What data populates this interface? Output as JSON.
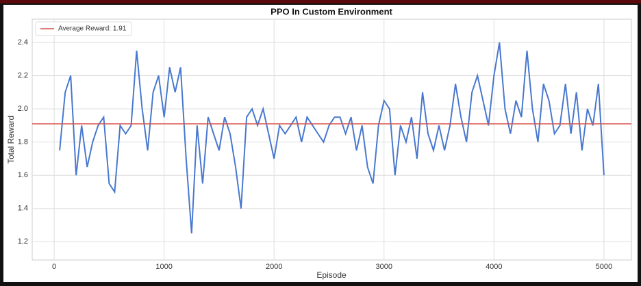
{
  "chart_data": {
    "type": "line",
    "title": "PPO In Custom Environment",
    "xlabel": "Episode",
    "ylabel": "Total Reward",
    "x": [
      50,
      100,
      150,
      200,
      250,
      300,
      350,
      400,
      450,
      500,
      550,
      600,
      650,
      700,
      750,
      800,
      850,
      900,
      950,
      1000,
      1050,
      1100,
      1150,
      1200,
      1250,
      1300,
      1350,
      1400,
      1450,
      1500,
      1550,
      1600,
      1650,
      1700,
      1750,
      1800,
      1850,
      1900,
      1950,
      2000,
      2050,
      2100,
      2150,
      2200,
      2250,
      2300,
      2350,
      2400,
      2450,
      2500,
      2550,
      2600,
      2650,
      2700,
      2750,
      2800,
      2850,
      2900,
      2950,
      3000,
      3050,
      3100,
      3150,
      3200,
      3250,
      3300,
      3350,
      3400,
      3450,
      3500,
      3550,
      3600,
      3650,
      3700,
      3750,
      3800,
      3850,
      3900,
      3950,
      4000,
      4050,
      4100,
      4150,
      4200,
      4250,
      4300,
      4350,
      4400,
      4450,
      4500,
      4550,
      4600,
      4650,
      4700,
      4750,
      4800,
      4850,
      4900,
      4950,
      5000
    ],
    "series": [
      {
        "color": "#4878cf",
        "values": [
          1.75,
          2.1,
          2.2,
          1.6,
          1.9,
          1.65,
          1.8,
          1.9,
          1.95,
          1.55,
          1.5,
          1.9,
          1.85,
          1.9,
          2.35,
          2.0,
          1.75,
          2.1,
          2.2,
          1.95,
          2.25,
          2.1,
          2.25,
          1.7,
          1.25,
          1.9,
          1.55,
          1.95,
          1.85,
          1.75,
          1.95,
          1.85,
          1.65,
          1.4,
          1.95,
          2.0,
          1.9,
          2.0,
          1.85,
          1.7,
          1.9,
          1.85,
          1.9,
          1.95,
          1.8,
          1.95,
          1.9,
          1.85,
          1.8,
          1.9,
          1.95,
          1.95,
          1.85,
          1.95,
          1.75,
          1.9,
          1.65,
          1.55,
          1.9,
          2.05,
          2.0,
          1.6,
          1.9,
          1.8,
          1.95,
          1.7,
          2.1,
          1.85,
          1.75,
          1.9,
          1.75,
          1.9,
          2.15,
          1.95,
          1.8,
          2.1,
          2.2,
          2.05,
          1.9,
          2.2,
          2.4,
          2.0,
          1.85,
          2.05,
          1.95,
          2.35,
          2.0,
          1.8,
          2.15,
          2.05,
          1.85,
          1.9,
          2.15,
          1.85,
          2.1,
          1.75,
          2.0,
          1.9,
          2.15,
          1.6
        ]
      }
    ],
    "hline": {
      "name": "Average Reward: 1.91",
      "value": 1.91,
      "color": "#d9534f"
    },
    "xlim": [
      -200,
      5250
    ],
    "ylim": [
      1.09,
      2.54
    ],
    "xticks": [
      0,
      1000,
      2000,
      3000,
      4000,
      5000
    ],
    "yticks": [
      1.2,
      1.4,
      1.6,
      1.8,
      {
        "value": 2,
        "label": "2.0"
      },
      2.2,
      2.4
    ],
    "grid": true,
    "legend": "upper left"
  }
}
